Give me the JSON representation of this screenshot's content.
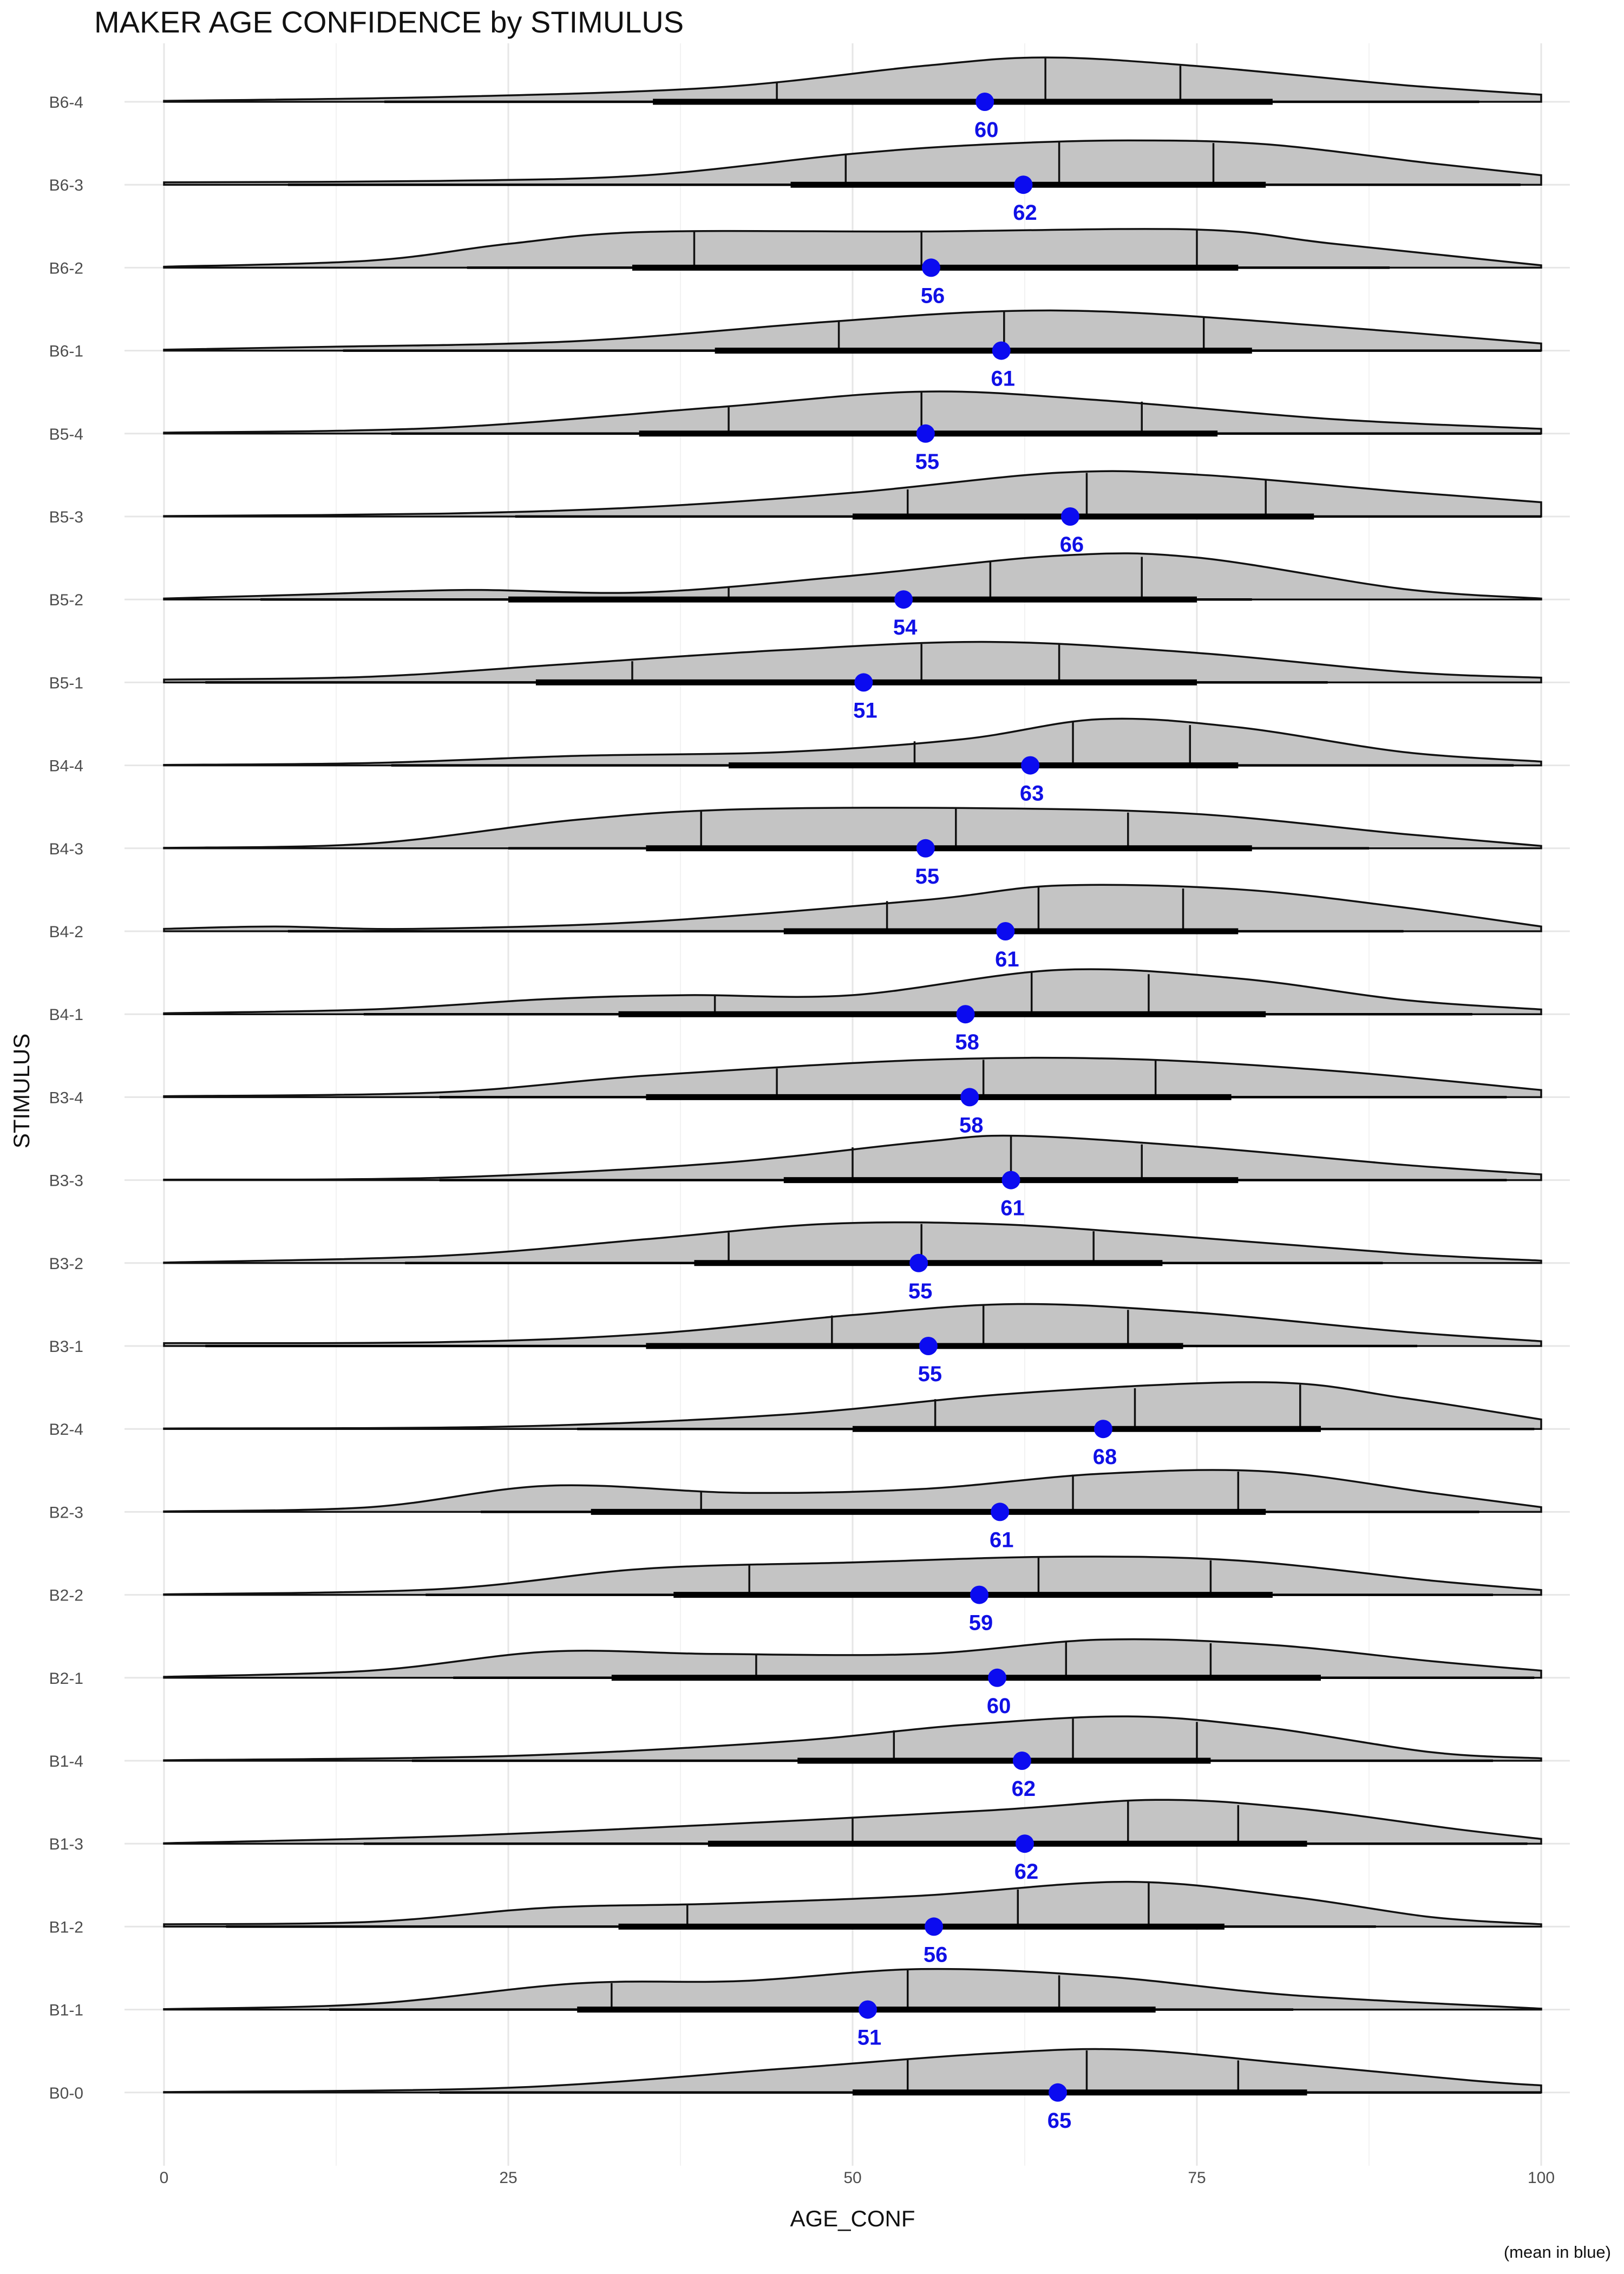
{
  "chart_data": {
    "type": "ridgeline",
    "title": "MAKER AGE CONFIDENCE by STIMULUS",
    "xlabel": "AGE_CONF",
    "ylabel": "STIMULUS",
    "caption": "(mean in blue)",
    "xlim": [
      0,
      100
    ],
    "xticks": [
      0,
      25,
      50,
      75,
      100
    ],
    "grid": true,
    "mean_color": "#0b0bf0",
    "fill_color": "#c4c4c4",
    "stimuli": [
      {
        "name": "B6-4",
        "mean": 60,
        "mean_x": 59.6,
        "whisker": [
          16,
          95.5
        ],
        "iqr": [
          35.5,
          80.5
        ],
        "quantiles": [
          44.5,
          64,
          73.8
        ],
        "density": [
          [
            0,
            0.02
          ],
          [
            20,
            0.1
          ],
          [
            40,
            0.3
          ],
          [
            55,
            0.75
          ],
          [
            64,
            0.93
          ],
          [
            75,
            0.75
          ],
          [
            90,
            0.35
          ],
          [
            100,
            0.15
          ]
        ]
      },
      {
        "name": "B6-3",
        "mean": 62,
        "mean_x": 62.4,
        "whisker": [
          9,
          98.5
        ],
        "iqr": [
          45.5,
          80
        ],
        "quantiles": [
          49.5,
          65,
          76.2
        ],
        "density": [
          [
            0,
            0.05
          ],
          [
            20,
            0.08
          ],
          [
            35,
            0.2
          ],
          [
            50,
            0.65
          ],
          [
            60,
            0.85
          ],
          [
            70,
            0.93
          ],
          [
            80,
            0.85
          ],
          [
            92,
            0.45
          ],
          [
            100,
            0.2
          ]
        ]
      },
      {
        "name": "B6-2",
        "mean": 56,
        "mean_x": 55.7,
        "whisker": [
          22,
          89
        ],
        "iqr": [
          34,
          78
        ],
        "quantiles": [
          38.5,
          55,
          75
        ],
        "density": [
          [
            0,
            0.02
          ],
          [
            15,
            0.15
          ],
          [
            25,
            0.5
          ],
          [
            35,
            0.75
          ],
          [
            55,
            0.76
          ],
          [
            75,
            0.8
          ],
          [
            85,
            0.5
          ],
          [
            100,
            0.05
          ]
        ]
      },
      {
        "name": "B6-1",
        "mean": 61,
        "mean_x": 60.8,
        "whisker": [
          13,
          100
        ],
        "iqr": [
          40,
          79
        ],
        "quantiles": [
          49,
          61,
          75.5
        ],
        "density": [
          [
            0,
            0.02
          ],
          [
            12,
            0.08
          ],
          [
            30,
            0.2
          ],
          [
            48,
            0.6
          ],
          [
            60,
            0.82
          ],
          [
            70,
            0.8
          ],
          [
            85,
            0.5
          ],
          [
            100,
            0.15
          ]
        ]
      },
      {
        "name": "B5-4",
        "mean": 55,
        "mean_x": 55.3,
        "whisker": [
          16.5,
          100
        ],
        "iqr": [
          34.5,
          76.5
        ],
        "quantiles": [
          41,
          55,
          71
        ],
        "density": [
          [
            0,
            0.02
          ],
          [
            20,
            0.12
          ],
          [
            40,
            0.55
          ],
          [
            55,
            0.88
          ],
          [
            68,
            0.7
          ],
          [
            85,
            0.3
          ],
          [
            100,
            0.1
          ]
        ]
      },
      {
        "name": "B5-3",
        "mean": 66,
        "mean_x": 65.8,
        "whisker": [
          25.5,
          100
        ],
        "iqr": [
          50,
          83.5
        ],
        "quantiles": [
          54,
          67,
          80
        ],
        "density": [
          [
            0,
            0.01
          ],
          [
            20,
            0.06
          ],
          [
            35,
            0.2
          ],
          [
            50,
            0.5
          ],
          [
            65,
            0.92
          ],
          [
            75,
            0.88
          ],
          [
            90,
            0.52
          ],
          [
            100,
            0.3
          ]
        ]
      },
      {
        "name": "B5-2",
        "mean": 54,
        "mean_x": 53.7,
        "whisker": [
          7,
          79
        ],
        "iqr": [
          25,
          75
        ],
        "quantiles": [
          41,
          60,
          71
        ],
        "density": [
          [
            0,
            0.02
          ],
          [
            10,
            0.1
          ],
          [
            22,
            0.2
          ],
          [
            35,
            0.15
          ],
          [
            50,
            0.5
          ],
          [
            65,
            0.92
          ],
          [
            75,
            0.88
          ],
          [
            90,
            0.22
          ],
          [
            100,
            0.02
          ]
        ]
      },
      {
        "name": "B5-1",
        "mean": 51,
        "mean_x": 50.8,
        "whisker": [
          3,
          84.5
        ],
        "iqr": [
          27,
          75
        ],
        "quantiles": [
          34,
          55,
          65
        ],
        "density": [
          [
            0,
            0.06
          ],
          [
            15,
            0.12
          ],
          [
            30,
            0.4
          ],
          [
            45,
            0.68
          ],
          [
            60,
            0.85
          ],
          [
            75,
            0.62
          ],
          [
            90,
            0.22
          ],
          [
            100,
            0.1
          ]
        ]
      },
      {
        "name": "B4-4",
        "mean": 63,
        "mean_x": 62.9,
        "whisker": [
          16.5,
          98
        ],
        "iqr": [
          41,
          78
        ],
        "quantiles": [
          54.5,
          66,
          74.5
        ],
        "density": [
          [
            0,
            0.01
          ],
          [
            15,
            0.05
          ],
          [
            30,
            0.2
          ],
          [
            45,
            0.28
          ],
          [
            58,
            0.55
          ],
          [
            68,
            0.97
          ],
          [
            78,
            0.8
          ],
          [
            90,
            0.28
          ],
          [
            100,
            0.08
          ]
        ]
      },
      {
        "name": "B4-3",
        "mean": 55,
        "mean_x": 55.3,
        "whisker": [
          25,
          87.5
        ],
        "iqr": [
          35,
          79
        ],
        "quantiles": [
          39,
          57.5,
          70
        ],
        "density": [
          [
            0,
            0.01
          ],
          [
            15,
            0.1
          ],
          [
            30,
            0.6
          ],
          [
            42,
            0.82
          ],
          [
            60,
            0.84
          ],
          [
            75,
            0.72
          ],
          [
            90,
            0.3
          ],
          [
            100,
            0.05
          ]
        ]
      },
      {
        "name": "B4-2",
        "mean": 61,
        "mean_x": 61.1,
        "whisker": [
          9,
          90
        ],
        "iqr": [
          45,
          78
        ],
        "quantiles": [
          52.5,
          63.5,
          74
        ],
        "density": [
          [
            0,
            0.05
          ],
          [
            8,
            0.1
          ],
          [
            18,
            0.05
          ],
          [
            35,
            0.2
          ],
          [
            55,
            0.65
          ],
          [
            65,
            0.96
          ],
          [
            78,
            0.88
          ],
          [
            90,
            0.5
          ],
          [
            100,
            0.1
          ]
        ]
      },
      {
        "name": "B4-1",
        "mean": 58,
        "mean_x": 58.2,
        "whisker": [
          14.5,
          95
        ],
        "iqr": [
          33,
          80
        ],
        "quantiles": [
          40,
          63,
          71.5
        ],
        "density": [
          [
            0,
            0.02
          ],
          [
            15,
            0.1
          ],
          [
            28,
            0.32
          ],
          [
            38,
            0.4
          ],
          [
            50,
            0.4
          ],
          [
            65,
            0.93
          ],
          [
            78,
            0.75
          ],
          [
            90,
            0.3
          ],
          [
            100,
            0.1
          ]
        ]
      },
      {
        "name": "B3-4",
        "mean": 58,
        "mean_x": 58.5,
        "whisker": [
          20,
          97.5
        ],
        "iqr": [
          35,
          77.5
        ],
        "quantiles": [
          44.5,
          59.5,
          72
        ],
        "density": [
          [
            0,
            0.02
          ],
          [
            20,
            0.1
          ],
          [
            35,
            0.45
          ],
          [
            55,
            0.78
          ],
          [
            70,
            0.8
          ],
          [
            85,
            0.55
          ],
          [
            100,
            0.15
          ]
        ]
      },
      {
        "name": "B3-3",
        "mean": 61,
        "mean_x": 61.5,
        "whisker": [
          20,
          97.5
        ],
        "iqr": [
          45,
          78
        ],
        "quantiles": [
          50,
          61.5,
          71
        ],
        "density": [
          [
            0,
            0.01
          ],
          [
            20,
            0.05
          ],
          [
            40,
            0.35
          ],
          [
            55,
            0.8
          ],
          [
            62,
            0.93
          ],
          [
            75,
            0.7
          ],
          [
            90,
            0.32
          ],
          [
            100,
            0.12
          ]
        ]
      },
      {
        "name": "B3-2",
        "mean": 55,
        "mean_x": 54.8,
        "whisker": [
          17.5,
          88.5
        ],
        "iqr": [
          38.5,
          72.5
        ],
        "quantiles": [
          41,
          55,
          67.5
        ],
        "density": [
          [
            0,
            0.01
          ],
          [
            20,
            0.15
          ],
          [
            35,
            0.5
          ],
          [
            48,
            0.82
          ],
          [
            60,
            0.82
          ],
          [
            72,
            0.6
          ],
          [
            90,
            0.2
          ],
          [
            100,
            0.05
          ]
        ]
      },
      {
        "name": "B3-1",
        "mean": 55,
        "mean_x": 55.5,
        "whisker": [
          3,
          91
        ],
        "iqr": [
          35,
          74
        ],
        "quantiles": [
          48.5,
          59.5,
          70
        ],
        "density": [
          [
            0,
            0.06
          ],
          [
            20,
            0.08
          ],
          [
            35,
            0.25
          ],
          [
            50,
            0.65
          ],
          [
            62,
            0.88
          ],
          [
            75,
            0.7
          ],
          [
            90,
            0.3
          ],
          [
            100,
            0.1
          ]
        ]
      },
      {
        "name": "B2-4",
        "mean": 68,
        "mean_x": 68.2,
        "whisker": [
          30,
          99.5
        ],
        "iqr": [
          50,
          84
        ],
        "quantiles": [
          56,
          70.5,
          82.5
        ],
        "density": [
          [
            0,
            0.01
          ],
          [
            25,
            0.05
          ],
          [
            45,
            0.3
          ],
          [
            62,
            0.75
          ],
          [
            80,
            0.98
          ],
          [
            90,
            0.65
          ],
          [
            100,
            0.2
          ]
        ]
      },
      {
        "name": "B2-3",
        "mean": 61,
        "mean_x": 60.7,
        "whisker": [
          23,
          95.5
        ],
        "iqr": [
          31,
          80
        ],
        "quantiles": [
          39,
          66,
          78
        ],
        "density": [
          [
            0,
            0.01
          ],
          [
            15,
            0.1
          ],
          [
            28,
            0.55
          ],
          [
            42,
            0.4
          ],
          [
            55,
            0.48
          ],
          [
            68,
            0.8
          ],
          [
            80,
            0.85
          ],
          [
            92,
            0.4
          ],
          [
            100,
            0.1
          ]
        ]
      },
      {
        "name": "B2-2",
        "mean": 59,
        "mean_x": 59.2,
        "whisker": [
          19,
          96.5
        ],
        "iqr": [
          37,
          80.5
        ],
        "quantiles": [
          42.5,
          63.5,
          76
        ],
        "density": [
          [
            0,
            0.01
          ],
          [
            20,
            0.12
          ],
          [
            35,
            0.55
          ],
          [
            50,
            0.68
          ],
          [
            65,
            0.8
          ],
          [
            78,
            0.72
          ],
          [
            92,
            0.3
          ],
          [
            100,
            0.1
          ]
        ]
      },
      {
        "name": "B2-1",
        "mean": 60,
        "mean_x": 60.5,
        "whisker": [
          21,
          99.5
        ],
        "iqr": [
          32.5,
          84
        ],
        "quantiles": [
          43,
          65.5,
          76
        ],
        "density": [
          [
            0,
            0.02
          ],
          [
            15,
            0.15
          ],
          [
            28,
            0.55
          ],
          [
            40,
            0.5
          ],
          [
            55,
            0.5
          ],
          [
            68,
            0.8
          ],
          [
            80,
            0.7
          ],
          [
            92,
            0.35
          ],
          [
            100,
            0.15
          ]
        ]
      },
      {
        "name": "B1-4",
        "mean": 62,
        "mean_x": 62.3,
        "whisker": [
          18,
          96.5
        ],
        "iqr": [
          46,
          76
        ],
        "quantiles": [
          53,
          66,
          75
        ],
        "density": [
          [
            0,
            0.01
          ],
          [
            25,
            0.1
          ],
          [
            45,
            0.4
          ],
          [
            58,
            0.75
          ],
          [
            70,
            0.93
          ],
          [
            80,
            0.7
          ],
          [
            92,
            0.18
          ],
          [
            100,
            0.05
          ]
        ]
      },
      {
        "name": "B1-3",
        "mean": 62,
        "mean_x": 62.5,
        "whisker": [
          14.5,
          99
        ],
        "iqr": [
          39.5,
          83
        ],
        "quantiles": [
          50,
          70,
          78
        ],
        "density": [
          [
            0,
            0.01
          ],
          [
            20,
            0.15
          ],
          [
            40,
            0.4
          ],
          [
            60,
            0.7
          ],
          [
            72,
            0.92
          ],
          [
            82,
            0.75
          ],
          [
            94,
            0.3
          ],
          [
            100,
            0.1
          ]
        ]
      },
      {
        "name": "B1-2",
        "mean": 56,
        "mean_x": 55.9,
        "whisker": [
          4.5,
          88
        ],
        "iqr": [
          33,
          77
        ],
        "quantiles": [
          38,
          62,
          71.5
        ],
        "density": [
          [
            0,
            0.05
          ],
          [
            15,
            0.1
          ],
          [
            28,
            0.4
          ],
          [
            40,
            0.48
          ],
          [
            55,
            0.65
          ],
          [
            70,
            0.94
          ],
          [
            82,
            0.62
          ],
          [
            92,
            0.2
          ],
          [
            100,
            0.05
          ]
        ]
      },
      {
        "name": "B1-1",
        "mean": 51,
        "mean_x": 51.1,
        "whisker": [
          12,
          82
        ],
        "iqr": [
          30,
          72
        ],
        "quantiles": [
          32.5,
          54,
          65
        ],
        "density": [
          [
            0,
            0.01
          ],
          [
            15,
            0.12
          ],
          [
            30,
            0.55
          ],
          [
            42,
            0.6
          ],
          [
            55,
            0.85
          ],
          [
            68,
            0.7
          ],
          [
            82,
            0.3
          ],
          [
            100,
            0.02
          ]
        ]
      },
      {
        "name": "B0-0",
        "mean": 65,
        "mean_x": 64.9,
        "whisker": [
          20,
          100
        ],
        "iqr": [
          50,
          83
        ],
        "quantiles": [
          54,
          67,
          78
        ],
        "density": [
          [
            0,
            0.01
          ],
          [
            25,
            0.1
          ],
          [
            45,
            0.5
          ],
          [
            60,
            0.82
          ],
          [
            70,
            0.9
          ],
          [
            82,
            0.6
          ],
          [
            95,
            0.25
          ],
          [
            100,
            0.15
          ]
        ]
      }
    ]
  }
}
